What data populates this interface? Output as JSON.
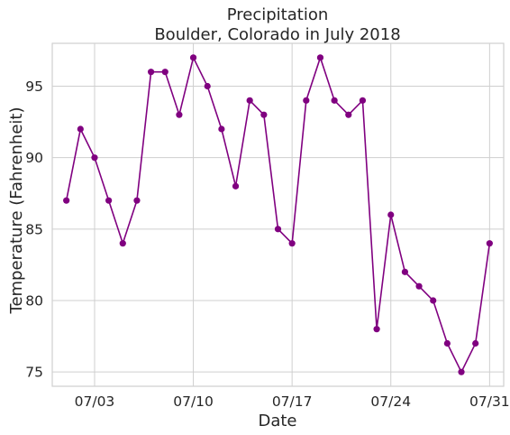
{
  "chart_data": {
    "type": "line",
    "title": "Precipitation",
    "subtitle": "Boulder, Colorado in July 2018",
    "xlabel": "Date",
    "ylabel": "Temperature (Fahrenheit)",
    "xlim": [
      "2018-06-30",
      "2018-08-01"
    ],
    "ylim": [
      74,
      98
    ],
    "x_ticks": [
      {
        "date": "2018-07-03",
        "label": "07/03"
      },
      {
        "date": "2018-07-10",
        "label": "07/10"
      },
      {
        "date": "2018-07-17",
        "label": "07/17"
      },
      {
        "date": "2018-07-24",
        "label": "07/24"
      },
      {
        "date": "2018-07-31",
        "label": "07/31"
      }
    ],
    "y_ticks": [
      {
        "value": 75,
        "label": "75"
      },
      {
        "value": 80,
        "label": "80"
      },
      {
        "value": 85,
        "label": "85"
      },
      {
        "value": 90,
        "label": "90"
      },
      {
        "value": 95,
        "label": "95"
      }
    ],
    "grid": true,
    "series_color": "#800080",
    "x": [
      "2018-07-01",
      "2018-07-02",
      "2018-07-03",
      "2018-07-04",
      "2018-07-05",
      "2018-07-06",
      "2018-07-07",
      "2018-07-08",
      "2018-07-09",
      "2018-07-10",
      "2018-07-11",
      "2018-07-12",
      "2018-07-13",
      "2018-07-14",
      "2018-07-15",
      "2018-07-16",
      "2018-07-17",
      "2018-07-18",
      "2018-07-19",
      "2018-07-20",
      "2018-07-21",
      "2018-07-22",
      "2018-07-23",
      "2018-07-24",
      "2018-07-25",
      "2018-07-26",
      "2018-07-27",
      "2018-07-28",
      "2018-07-29",
      "2018-07-30",
      "2018-07-31"
    ],
    "series": [
      {
        "values": [
          87,
          92,
          90,
          87,
          84,
          87,
          96,
          96,
          93,
          97,
          95,
          92,
          88,
          94,
          93,
          85,
          84,
          94,
          97,
          94,
          93,
          94,
          78,
          86,
          82,
          81,
          80,
          77,
          75,
          77,
          84
        ]
      }
    ]
  }
}
